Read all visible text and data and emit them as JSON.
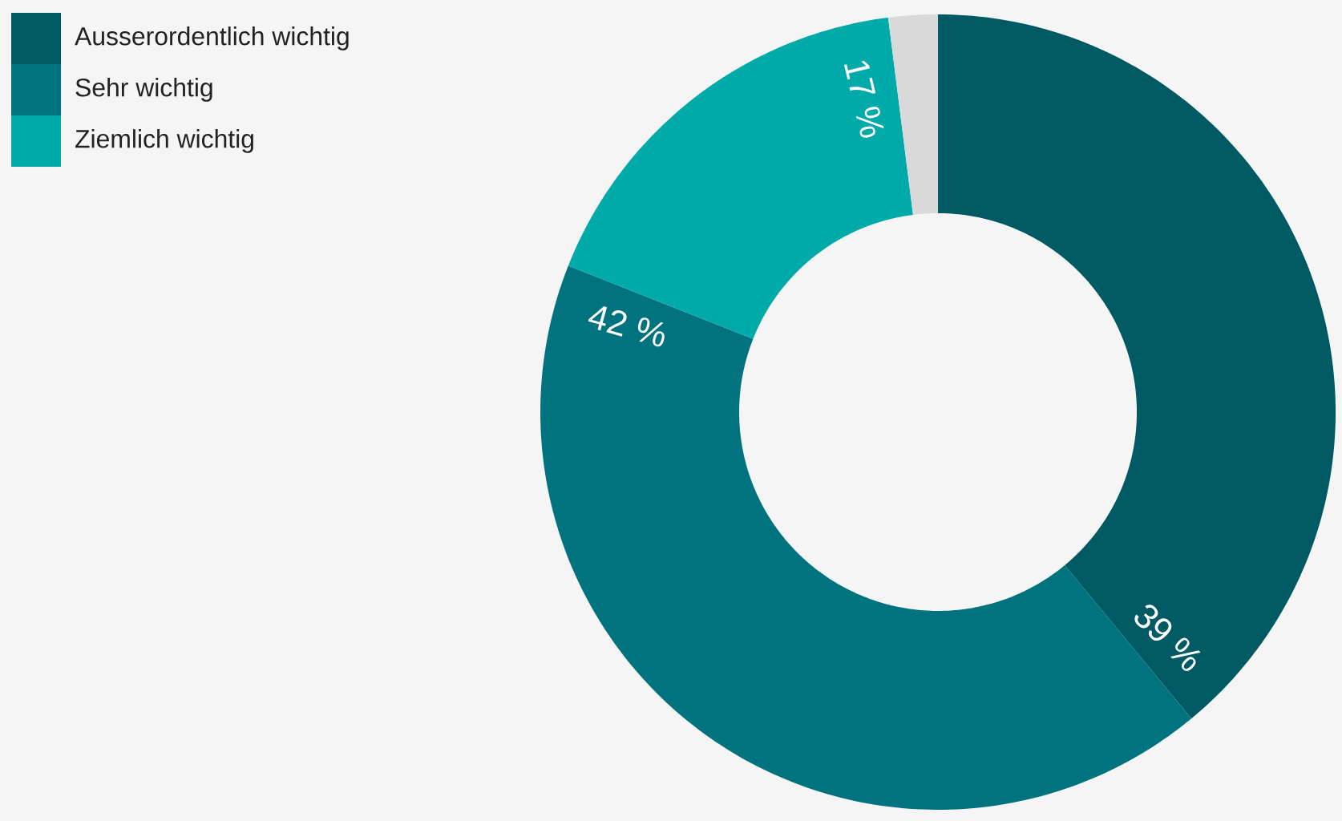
{
  "chart_data": {
    "type": "donut",
    "categories": [
      "Ausserordentlich wichtig",
      "Sehr wichtig",
      "Ziemlich wichtig",
      null
    ],
    "values": [
      39,
      42,
      17,
      2
    ],
    "colors": [
      "#005a64",
      "#00737e",
      "#00aaa8",
      "#d9d9d9"
    ],
    "value_labels": [
      "39 %",
      "42 %",
      "17 %",
      null
    ],
    "legend": "top left"
  }
}
